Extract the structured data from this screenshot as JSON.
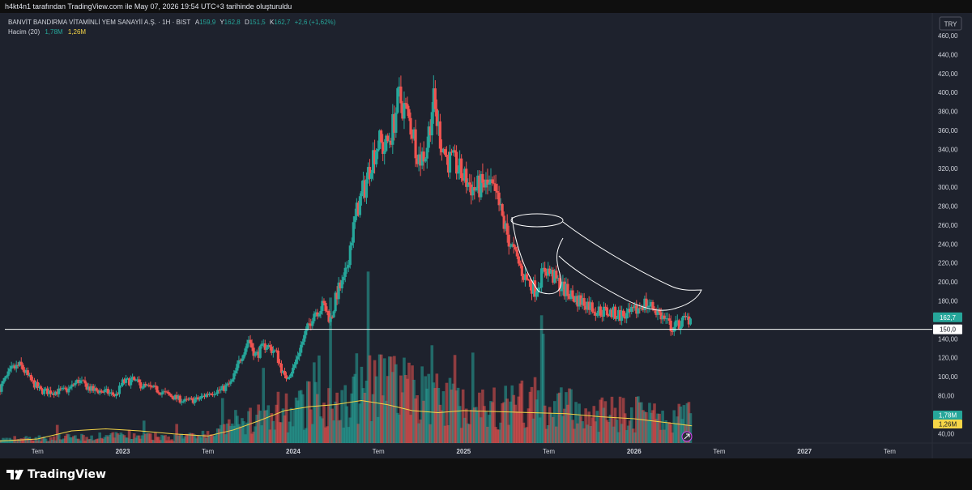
{
  "attribution": "h4kt4n1 tarafından TradingView.com ile May 07, 2026 19:54 UTC+3 tarihinde oluşturuldu",
  "brand": "TradingView",
  "currency_button": "TRY",
  "legend": {
    "symbol": "BANVİT BANDIRMA VİTAMİNLİ YEM SANAYİİ A.Ş. · 1H · BIST",
    "open_label": "A",
    "open": "159,9",
    "high_label": "Y",
    "high": "162,8",
    "low_label": "D",
    "low": "151,5",
    "close_label": "K",
    "close": "162,7",
    "change": "+2,6 (+1,62%)",
    "volume_label": "Hacim (20)",
    "volume_value": "1,78M",
    "volume_ma": "1,26M"
  },
  "badges": {
    "price": "162,7",
    "hline": "150,0",
    "volume": "1,78M",
    "volume_ma": "1,26M"
  },
  "colors": {
    "background": "#1e222d",
    "up": "#26a69a",
    "down": "#ef5350",
    "volume_up": "#26a69a",
    "volume_down": "#ef5350",
    "volume_ma_line": "#f5d547",
    "drawing": "#ffffff"
  },
  "chart_data": {
    "type": "candlestick",
    "price_axis": {
      "min": 30,
      "max": 460,
      "ticks": [
        460,
        440,
        420,
        400,
        380,
        360,
        340,
        320,
        300,
        280,
        260,
        240,
        220,
        200,
        180,
        160,
        140,
        120,
        100,
        80,
        60,
        40
      ],
      "tick_labels": [
        "460,00",
        "440,00",
        "420,00",
        "400,00",
        "380,00",
        "360,00",
        "340,00",
        "320,00",
        "300,00",
        "280,00",
        "260,00",
        "240,00",
        "220,00",
        "200,00",
        "180,00",
        "",
        "140,00",
        "120,00",
        "100,00",
        "80,00",
        "60,00",
        "40,00"
      ]
    },
    "time_axis": {
      "labels": [
        "Tem",
        "2023",
        "Tem",
        "2024",
        "Tem",
        "2025",
        "Tem",
        "2026",
        "Tem",
        "2027",
        "Tem"
      ],
      "positions": [
        2022.5,
        2023.0,
        2023.5,
        2024.0,
        2024.5,
        2025.0,
        2025.5,
        2026.0,
        2026.5,
        2027.0,
        2027.5
      ],
      "range": [
        2022.28,
        2027.75
      ]
    },
    "horizontal_line": 150,
    "last_price": 162.7,
    "price_path": [
      [
        2022.28,
        88
      ],
      [
        2022.35,
        108
      ],
      [
        2022.4,
        112
      ],
      [
        2022.46,
        96
      ],
      [
        2022.52,
        85
      ],
      [
        2022.6,
        84
      ],
      [
        2022.68,
        86
      ],
      [
        2022.74,
        96
      ],
      [
        2022.82,
        86
      ],
      [
        2022.9,
        84
      ],
      [
        2022.96,
        80
      ],
      [
        2023.0,
        94
      ],
      [
        2023.06,
        96
      ],
      [
        2023.12,
        90
      ],
      [
        2023.2,
        86
      ],
      [
        2023.28,
        80
      ],
      [
        2023.36,
        74
      ],
      [
        2023.44,
        76
      ],
      [
        2023.52,
        84
      ],
      [
        2023.58,
        86
      ],
      [
        2023.64,
        94
      ],
      [
        2023.7,
        124
      ],
      [
        2023.74,
        140
      ],
      [
        2023.78,
        122
      ],
      [
        2023.84,
        134
      ],
      [
        2023.9,
        125
      ],
      [
        2023.95,
        98
      ],
      [
        2024.0,
        108
      ],
      [
        2024.04,
        130
      ],
      [
        2024.08,
        148
      ],
      [
        2024.12,
        168
      ],
      [
        2024.18,
        175
      ],
      [
        2024.22,
        160
      ],
      [
        2024.26,
        190
      ],
      [
        2024.3,
        200
      ],
      [
        2024.34,
        245
      ],
      [
        2024.38,
        280
      ],
      [
        2024.42,
        300
      ],
      [
        2024.46,
        330
      ],
      [
        2024.5,
        348
      ],
      [
        2024.54,
        340
      ],
      [
        2024.58,
        360
      ],
      [
        2024.62,
        395
      ],
      [
        2024.66,
        380
      ],
      [
        2024.7,
        360
      ],
      [
        2024.74,
        330
      ],
      [
        2024.78,
        338
      ],
      [
        2024.82,
        392
      ],
      [
        2024.86,
        355
      ],
      [
        2024.9,
        330
      ],
      [
        2024.96,
        322
      ],
      [
        2025.0,
        310
      ],
      [
        2025.06,
        298
      ],
      [
        2025.12,
        302
      ],
      [
        2025.16,
        300
      ],
      [
        2025.2,
        285
      ],
      [
        2025.24,
        258
      ],
      [
        2025.3,
        228
      ],
      [
        2025.36,
        205
      ],
      [
        2025.42,
        192
      ],
      [
        2025.48,
        215
      ],
      [
        2025.54,
        202
      ],
      [
        2025.6,
        190
      ],
      [
        2025.66,
        182
      ],
      [
        2025.72,
        178
      ],
      [
        2025.78,
        170
      ],
      [
        2025.84,
        168
      ],
      [
        2025.9,
        166
      ],
      [
        2025.96,
        164
      ],
      [
        2026.0,
        168
      ],
      [
        2026.06,
        178
      ],
      [
        2026.12,
        172
      ],
      [
        2026.18,
        160
      ],
      [
        2026.22,
        152
      ],
      [
        2026.26,
        155
      ],
      [
        2026.3,
        160
      ],
      [
        2026.34,
        162.7
      ]
    ],
    "volume_axis_max": 120,
    "volume_profile": [
      [
        2022.28,
        4
      ],
      [
        2022.5,
        5
      ],
      [
        2022.8,
        6
      ],
      [
        2023.0,
        7
      ],
      [
        2023.3,
        6
      ],
      [
        2023.5,
        8
      ],
      [
        2023.7,
        18
      ],
      [
        2023.8,
        25
      ],
      [
        2023.95,
        22
      ],
      [
        2024.05,
        35
      ],
      [
        2024.15,
        45
      ],
      [
        2024.25,
        40
      ],
      [
        2024.4,
        50
      ],
      [
        2024.55,
        60
      ],
      [
        2024.65,
        55
      ],
      [
        2024.8,
        45
      ],
      [
        2025.0,
        38
      ],
      [
        2025.2,
        36
      ],
      [
        2025.4,
        40
      ],
      [
        2025.6,
        34
      ],
      [
        2025.8,
        28
      ],
      [
        2026.0,
        30
      ],
      [
        2026.2,
        22
      ],
      [
        2026.34,
        26
      ]
    ],
    "volume_ma_path": [
      [
        2022.28,
        2
      ],
      [
        2022.5,
        4
      ],
      [
        2022.7,
        12
      ],
      [
        2022.9,
        14
      ],
      [
        2023.1,
        12
      ],
      [
        2023.3,
        9
      ],
      [
        2023.5,
        7
      ],
      [
        2023.65,
        13
      ],
      [
        2023.8,
        22
      ],
      [
        2023.95,
        32
      ],
      [
        2024.1,
        36
      ],
      [
        2024.25,
        38
      ],
      [
        2024.4,
        42
      ],
      [
        2024.55,
        38
      ],
      [
        2024.7,
        32
      ],
      [
        2024.85,
        30
      ],
      [
        2025.0,
        32
      ],
      [
        2025.2,
        31
      ],
      [
        2025.4,
        30
      ],
      [
        2025.6,
        29
      ],
      [
        2025.8,
        26
      ],
      [
        2026.0,
        24
      ],
      [
        2026.2,
        20
      ],
      [
        2026.34,
        17
      ]
    ]
  }
}
